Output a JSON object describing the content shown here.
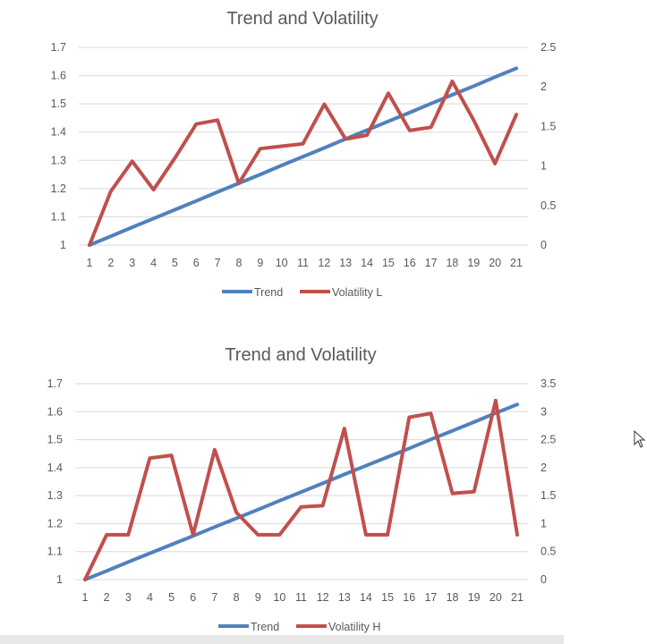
{
  "chart_data": [
    {
      "type": "line",
      "title": "Trend and Volatility",
      "categories": [
        "1",
        "2",
        "3",
        "4",
        "5",
        "6",
        "7",
        "8",
        "9",
        "10",
        "11",
        "12",
        "13",
        "14",
        "15",
        "16",
        "17",
        "18",
        "19",
        "20",
        "21"
      ],
      "left_axis": {
        "ylim": [
          1,
          1.7
        ],
        "ticks": [
          "1",
          "1.1",
          "1.2",
          "1.3",
          "1.4",
          "1.5",
          "1.6",
          "1.7"
        ]
      },
      "right_axis": {
        "ylim": [
          0,
          2.5
        ],
        "ticks": [
          "0",
          "0.5",
          "1",
          "1.5",
          "2",
          "2.5"
        ]
      },
      "series": [
        {
          "name": "Trend",
          "axis": "left",
          "color": "#4f81bd",
          "values": [
            1.0,
            1.031,
            1.063,
            1.094,
            1.125,
            1.156,
            1.188,
            1.219,
            1.25,
            1.282,
            1.313,
            1.344,
            1.376,
            1.407,
            1.438,
            1.469,
            1.501,
            1.532,
            1.563,
            1.595,
            1.626
          ]
        },
        {
          "name": "Volatility L",
          "axis": "right",
          "color": "#c0504d",
          "values": [
            0.0,
            0.68,
            1.06,
            0.7,
            1.1,
            1.53,
            1.58,
            0.78,
            1.22,
            1.25,
            1.28,
            1.78,
            1.34,
            1.39,
            1.92,
            1.45,
            1.49,
            2.07,
            1.58,
            1.03,
            1.65
          ]
        }
      ],
      "grid": true,
      "legend": "bottom"
    },
    {
      "type": "line",
      "title": "Trend and Volatility",
      "categories": [
        "1",
        "2",
        "3",
        "4",
        "5",
        "6",
        "7",
        "8",
        "9",
        "10",
        "11",
        "12",
        "13",
        "14",
        "15",
        "16",
        "17",
        "18",
        "19",
        "20",
        "21"
      ],
      "left_axis": {
        "ylim": [
          1,
          1.7
        ],
        "ticks": [
          "1",
          "1.1",
          "1.2",
          "1.3",
          "1.4",
          "1.5",
          "1.6",
          "1.7"
        ]
      },
      "right_axis": {
        "ylim": [
          0,
          3.5
        ],
        "ticks": [
          "0",
          "0.5",
          "1",
          "1.5",
          "2",
          "2.5",
          "3",
          "3.5"
        ]
      },
      "series": [
        {
          "name": "Trend",
          "axis": "left",
          "color": "#4f81bd",
          "values": [
            1.0,
            1.031,
            1.063,
            1.094,
            1.125,
            1.156,
            1.188,
            1.219,
            1.25,
            1.282,
            1.313,
            1.344,
            1.376,
            1.407,
            1.438,
            1.469,
            1.501,
            1.532,
            1.563,
            1.595,
            1.626
          ]
        },
        {
          "name": "Volatility H",
          "axis": "right",
          "color": "#c0504d",
          "values": [
            0.0,
            0.8,
            0.8,
            2.17,
            2.22,
            0.8,
            2.32,
            1.2,
            0.8,
            0.8,
            1.3,
            1.32,
            2.7,
            0.8,
            0.8,
            2.9,
            2.97,
            1.54,
            1.57,
            3.2,
            0.8
          ]
        }
      ],
      "grid": true,
      "legend": "bottom"
    }
  ]
}
